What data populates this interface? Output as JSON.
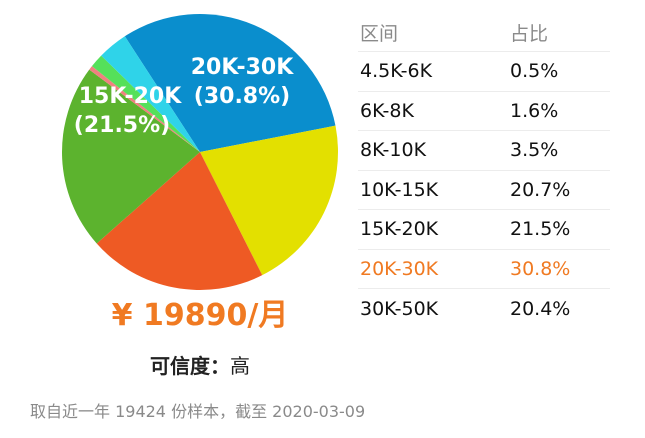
{
  "chart_data": {
    "type": "pie",
    "title": "",
    "series": [
      {
        "name": "20K-30K",
        "value": 30.8,
        "color": "#0a8ecd"
      },
      {
        "name": "30K-50K",
        "value": 20.4,
        "color": "#e3e000"
      },
      {
        "name": "10K-15K",
        "value": 20.7,
        "color": "#ee5a24"
      },
      {
        "name": "15K-20K",
        "value": 21.5,
        "color": "#5cb32e"
      },
      {
        "name": "4.5K-6K",
        "value": 0.5,
        "color": "#f08080"
      },
      {
        "name": "6K-8K",
        "value": 1.6,
        "color": "#55e05a"
      },
      {
        "name": "8K-10K",
        "value": 3.5,
        "color": "#2fd3e9"
      }
    ],
    "pie_labels": [
      {
        "range": "20K-30K",
        "pct": "(30.8%)"
      },
      {
        "range": "15K-20K",
        "pct": "(21.5%)"
      }
    ]
  },
  "salary": "¥ 19890/月",
  "reliability": {
    "label": "可信度：",
    "value": "高"
  },
  "footer": "取自近一年 19424 份样本，截至 2020-03-09",
  "table": {
    "headers": [
      "区间",
      "占比"
    ],
    "highlight_color": "#f07a22",
    "rows": [
      {
        "range": "4.5K-6K",
        "share": "0.5%"
      },
      {
        "range": "6K-8K",
        "share": "1.6%"
      },
      {
        "range": "8K-10K",
        "share": "3.5%"
      },
      {
        "range": "10K-15K",
        "share": "20.7%"
      },
      {
        "range": "15K-20K",
        "share": "21.5%"
      },
      {
        "range": "20K-30K",
        "share": "30.8%",
        "highlight": true
      },
      {
        "range": "30K-50K",
        "share": "20.4%"
      }
    ]
  }
}
